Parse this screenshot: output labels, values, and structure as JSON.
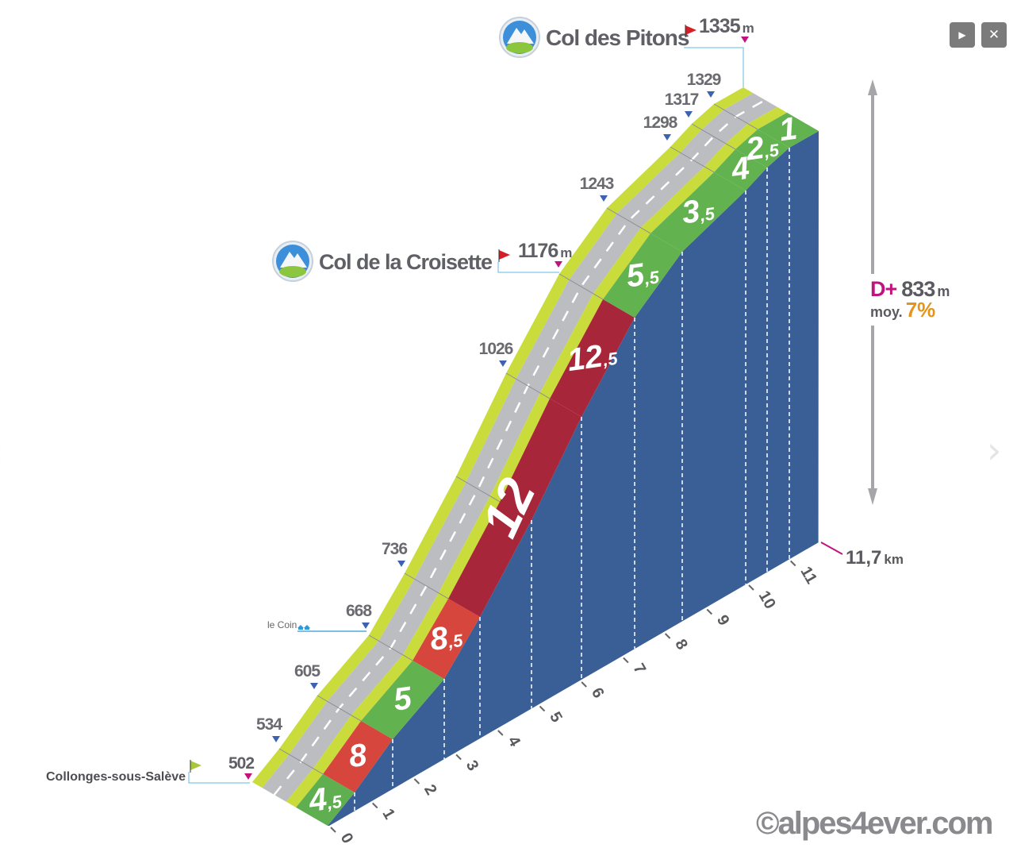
{
  "window": {
    "buttons": [
      {
        "name": "slideshow-play-button",
        "icon": "play-icon",
        "glyph": "▶"
      },
      {
        "name": "close-button",
        "icon": "close-icon",
        "glyph": "✕"
      }
    ],
    "nav": {
      "prev_glyph": "‹",
      "next_glyph": "›"
    }
  },
  "chart_data": {
    "type": "area",
    "title": "",
    "xlabel": "",
    "ylabel": "",
    "x_range": [
      0,
      11.7
    ],
    "km_ticks": [
      "0",
      "1",
      "2",
      "3",
      "4",
      "5",
      "6",
      "7",
      "8",
      "9",
      "10",
      "11"
    ],
    "total_distance": {
      "value": "11,7",
      "unit": "km"
    },
    "altitude_markers": [
      {
        "km": 1,
        "label": "534"
      },
      {
        "km": 2,
        "label": "605"
      },
      {
        "km": 3,
        "label": "668"
      },
      {
        "km": 4,
        "label": "736"
      },
      {
        "km": 6,
        "label": "1026"
      },
      {
        "km": 8,
        "label": "1243"
      },
      {
        "km": 9,
        "label": "1298"
      },
      {
        "km": 10,
        "label": "1317"
      },
      {
        "km": 11,
        "label": "1329"
      }
    ],
    "gradient_segments": [
      {
        "from": 0,
        "to": 1,
        "major": "4",
        "minor": ",5",
        "color": "#5fae4f"
      },
      {
        "from": 1,
        "to": 2,
        "major": "8",
        "minor": "",
        "color": "#d6463c"
      },
      {
        "from": 2,
        "to": 3,
        "major": "5",
        "minor": "",
        "color": "#62b24f"
      },
      {
        "from": 3,
        "to": 4,
        "major": "8",
        "minor": ",5",
        "color": "#d6463c"
      },
      {
        "from": 4,
        "to": 6,
        "major": "12",
        "minor": "",
        "color": "#a8263a"
      },
      {
        "from": 6,
        "to": 7,
        "major": "12",
        "minor": ",5",
        "color": "#a8263a"
      },
      {
        "from": 7,
        "to": 8,
        "major": "5",
        "minor": ",5",
        "color": "#62b24f"
      },
      {
        "from": 8,
        "to": 9,
        "major": "3",
        "minor": ",5",
        "color": "#62b24f"
      },
      {
        "from": 9,
        "to": 10,
        "major": "4",
        "minor": "",
        "color": "#62b24f"
      },
      {
        "from": 10,
        "to": 11,
        "major": "2",
        "minor": ",5",
        "color": "#62b24f"
      },
      {
        "from": 11,
        "to": 11.7,
        "major": "1",
        "minor": "",
        "color": "#62b24f"
      }
    ],
    "places": {
      "summit": {
        "name": "Col des Pitons",
        "altitude": "1335",
        "unit": "m"
      },
      "pass": {
        "name": "Col de la Croisette",
        "altitude": "1176",
        "unit": "m"
      },
      "start": {
        "name": "Collonges-sous-Salève",
        "altitude": "502"
      },
      "village": {
        "name": "le Coin"
      }
    },
    "summary": {
      "dplus_label": "D+",
      "dplus_value": "833",
      "dplus_unit": "m",
      "avg_label": "moy.",
      "avg_value": "7%"
    },
    "colors": {
      "side": "#3a5f96",
      "road": "#bcbdc1",
      "verge": "#c9dc3c",
      "accent": "#c0137f",
      "avg": "#e2951a",
      "text": "#6a6a70"
    }
  },
  "watermark": "©alpes4ever.com"
}
